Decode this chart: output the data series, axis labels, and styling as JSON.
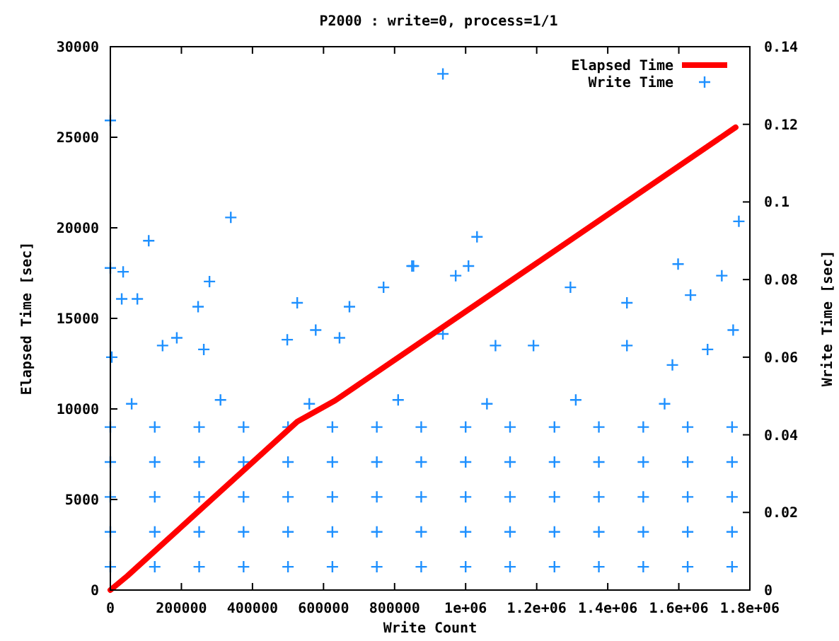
{
  "chart_data": {
    "type": "scatter",
    "title": "P2000 : write=0, process=1/1",
    "xlabel": "Write Count",
    "ylabel": "Elapsed Time [sec]",
    "y2label": "Write Time [sec]",
    "xlim": [
      0,
      1800000
    ],
    "xticks": [
      0,
      200000,
      400000,
      600000,
      800000,
      {
        "value": 1000000,
        "label": "1e+06"
      },
      {
        "value": 1200000,
        "label": "1.2e+06"
      },
      {
        "value": 1400000,
        "label": "1.4e+06"
      },
      {
        "value": 1600000,
        "label": "1.6e+06"
      },
      {
        "value": 1800000,
        "label": "1.8e+06"
      }
    ],
    "ylim": [
      0,
      30000
    ],
    "yticks": [
      0,
      5000,
      10000,
      15000,
      20000,
      25000,
      30000
    ],
    "y2lim": [
      0,
      0.14
    ],
    "y2ticks": [
      0,
      0.02,
      0.04,
      0.06,
      0.08,
      0.1,
      0.12,
      0.14
    ],
    "grid": false,
    "legend": "top right",
    "series": [
      {
        "name": "Elapsed Time",
        "type": "line",
        "color": "#ff0000",
        "marker": "none",
        "line_style": "solid",
        "x": [
          0,
          48000,
          526000,
          633000,
          1200000,
          1760000
        ],
        "values": [
          0,
          780,
          9300,
          10470,
          18050,
          25550
        ]
      },
      {
        "name": "Write Time",
        "axis": "y2",
        "color": "#1e90ff",
        "marker": "cross",
        "x": [
          0,
          125000,
          250000,
          375000,
          500000,
          625000,
          750000,
          875000,
          1000000,
          1125000,
          1250000,
          1375000,
          1500000,
          1625000,
          1750000,
          0,
          125000,
          250000,
          375000,
          500000,
          625000,
          750000,
          875000,
          1000000,
          1125000,
          1250000,
          1375000,
          1500000,
          1625000,
          1750000,
          0,
          125000,
          250000,
          375000,
          500000,
          625000,
          750000,
          875000,
          1000000,
          1125000,
          1250000,
          1375000,
          1500000,
          1625000,
          1750000,
          0,
          125000,
          250000,
          375000,
          500000,
          625000,
          750000,
          875000,
          1000000,
          1125000,
          1250000,
          1375000,
          1500000,
          1625000,
          1750000,
          0,
          125000,
          250000,
          375000,
          500000,
          625000,
          750000,
          875000,
          1000000,
          1125000,
          1250000,
          1375000,
          1500000,
          1625000,
          1750000,
          60000,
          310000,
          560000,
          810000,
          1060000,
          1310000,
          1560000,
          936000,
          339000,
          108000,
          36000,
          279000,
          32000,
          76000,
          247000,
          526000,
          849000,
          769000,
          673000,
          1032000,
          1008000,
          972000,
          1769000,
          1721000,
          1598000,
          1633000,
          1295000,
          1454000,
          853000,
          0,
          0,
          147000,
          187000,
          578000,
          645000,
          4000,
          498000,
          263000,
          1753000,
          1454000,
          1191000,
          1084000,
          936000,
          1681000,
          1582000
        ],
        "values": [
          0.006,
          0.006,
          0.006,
          0.006,
          0.006,
          0.006,
          0.006,
          0.006,
          0.006,
          0.006,
          0.006,
          0.006,
          0.006,
          0.006,
          0.006,
          0.015,
          0.015,
          0.015,
          0.015,
          0.015,
          0.015,
          0.015,
          0.015,
          0.015,
          0.015,
          0.015,
          0.015,
          0.015,
          0.015,
          0.015,
          0.024,
          0.024,
          0.024,
          0.024,
          0.024,
          0.024,
          0.024,
          0.024,
          0.024,
          0.024,
          0.024,
          0.024,
          0.024,
          0.024,
          0.024,
          0.033,
          0.033,
          0.033,
          0.033,
          0.033,
          0.033,
          0.033,
          0.033,
          0.033,
          0.033,
          0.033,
          0.033,
          0.033,
          0.033,
          0.033,
          0.042,
          0.042,
          0.042,
          0.042,
          0.042,
          0.042,
          0.042,
          0.042,
          0.042,
          0.042,
          0.042,
          0.042,
          0.042,
          0.042,
          0.042,
          0.048,
          0.049,
          0.048,
          0.049,
          0.048,
          0.049,
          0.048,
          0.133,
          0.096,
          0.09,
          0.082,
          0.0795,
          0.075,
          0.075,
          0.073,
          0.074,
          0.0835,
          0.078,
          0.073,
          0.091,
          0.0835,
          0.081,
          0.095,
          0.081,
          0.084,
          0.076,
          0.078,
          0.074,
          0.0835,
          0.121,
          0.083,
          0.063,
          0.065,
          0.067,
          0.065,
          0.06,
          0.0645,
          0.062,
          0.067,
          0.063,
          0.063,
          0.063,
          0.066,
          0.062,
          0.058
        ]
      }
    ]
  }
}
